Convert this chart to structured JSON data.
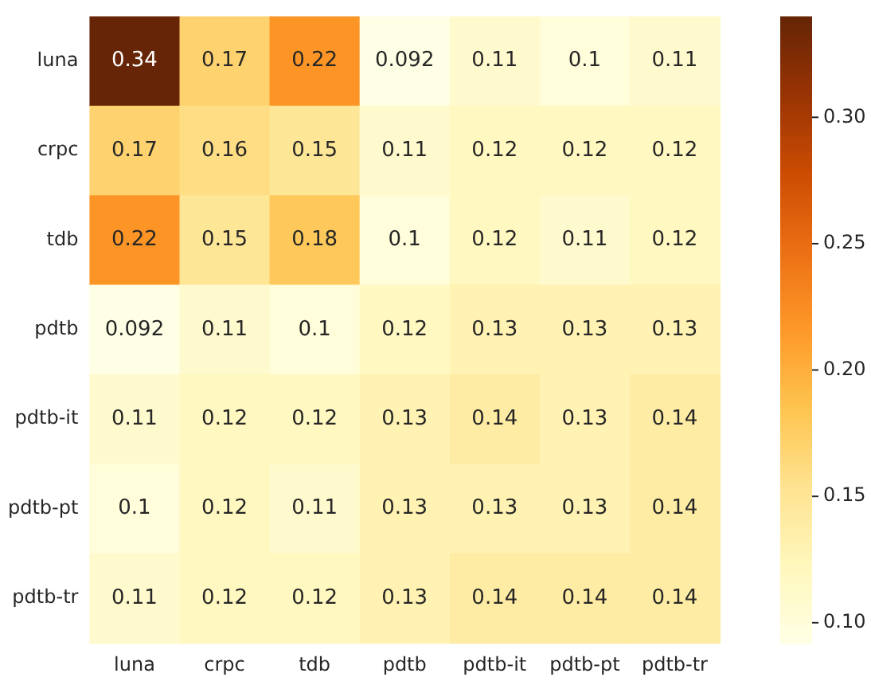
{
  "chart_data": {
    "type": "heatmap",
    "categories": [
      "luna",
      "crpc",
      "tdb",
      "pdtb",
      "pdtb-it",
      "pdtb-pt",
      "pdtb-tr"
    ],
    "y_categories": [
      "luna",
      "crpc",
      "tdb",
      "pdtb",
      "pdtb-it",
      "pdtb-pt",
      "pdtb-tr"
    ],
    "cells": [
      [
        0.34,
        0.17,
        0.22,
        0.092,
        0.11,
        0.1,
        0.11
      ],
      [
        0.17,
        0.16,
        0.15,
        0.11,
        0.12,
        0.12,
        0.12
      ],
      [
        0.22,
        0.15,
        0.18,
        0.1,
        0.12,
        0.11,
        0.12
      ],
      [
        0.092,
        0.11,
        0.1,
        0.12,
        0.13,
        0.13,
        0.13
      ],
      [
        0.11,
        0.12,
        0.12,
        0.13,
        0.14,
        0.13,
        0.14
      ],
      [
        0.1,
        0.12,
        0.11,
        0.13,
        0.13,
        0.13,
        0.14
      ],
      [
        0.11,
        0.12,
        0.12,
        0.13,
        0.14,
        0.14,
        0.14
      ]
    ],
    "clim": [
      0.092,
      0.34
    ],
    "cticks": [
      {
        "value": 0.1,
        "label": "0.10"
      },
      {
        "value": 0.15,
        "label": "0.15"
      },
      {
        "value": 0.2,
        "label": "0.20"
      },
      {
        "value": 0.25,
        "label": "0.25"
      },
      {
        "value": 0.3,
        "label": "0.30"
      }
    ],
    "data_labels": true
  }
}
